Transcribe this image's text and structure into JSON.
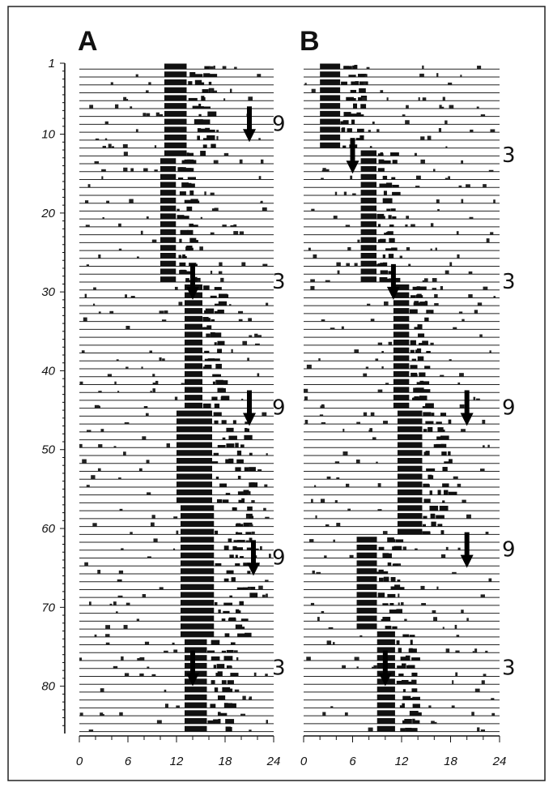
{
  "chart_data": {
    "type": "actogram",
    "panels": [
      {
        "label": "A",
        "activity_onsets": [
          {
            "days": [
              1,
              12
            ],
            "onset_h": 10.5,
            "offset_h": 15.5
          },
          {
            "days": [
              13,
              28
            ],
            "onset_h": 10.0,
            "offset_h": 13.5
          },
          {
            "days": [
              29,
              44
            ],
            "onset_h": 13.0,
            "offset_h": 17.0
          },
          {
            "days": [
              45,
              56
            ],
            "onset_h": 12.0,
            "offset_h": 20.0
          },
          {
            "days": [
              57,
              73
            ],
            "onset_h": 12.5,
            "offset_h": 20.0
          },
          {
            "days": [
              74,
              85
            ],
            "onset_h": 13.0,
            "offset_h": 18.0
          }
        ],
        "markers": [
          {
            "day": 7,
            "hour": 21,
            "label": "9"
          },
          {
            "day": 27,
            "hour": 14,
            "label": "3"
          },
          {
            "day": 43,
            "hour": 21,
            "label": "9"
          },
          {
            "day": 62,
            "hour": 21.5,
            "label": "9"
          },
          {
            "day": 76,
            "hour": 14,
            "label": "3"
          }
        ]
      },
      {
        "label": "B",
        "activity_onsets": [
          {
            "days": [
              1,
              11
            ],
            "onset_h": 2.0,
            "offset_h": 6.5
          },
          {
            "days": [
              12,
              28
            ],
            "onset_h": 7.0,
            "offset_h": 10.5
          },
          {
            "days": [
              29,
              44
            ],
            "onset_h": 11.0,
            "offset_h": 14.5
          },
          {
            "days": [
              45,
              60
            ],
            "onset_h": 11.5,
            "offset_h": 17.0
          },
          {
            "days": [
              61,
              72
            ],
            "onset_h": 6.5,
            "offset_h": 11.0
          },
          {
            "days": [
              73,
              85
            ],
            "onset_h": 9.0,
            "offset_h": 13.0
          }
        ],
        "markers": [
          {
            "day": 11,
            "hour": 6,
            "label": "3"
          },
          {
            "day": 27,
            "hour": 11,
            "label": "3"
          },
          {
            "day": 43,
            "hour": 20,
            "label": "9"
          },
          {
            "day": 61,
            "hour": 20,
            "label": "9"
          },
          {
            "day": 76,
            "hour": 10,
            "label": "3"
          }
        ]
      }
    ],
    "y_ticks": [
      "1",
      "10",
      "20",
      "30",
      "40",
      "50",
      "60",
      "70",
      "80"
    ],
    "x_ticks": [
      "0",
      "6",
      "12",
      "18",
      "24"
    ],
    "ylim": [
      1,
      85
    ],
    "xlim": [
      0,
      24
    ],
    "title": "",
    "xlabel": "",
    "ylabel": ""
  }
}
